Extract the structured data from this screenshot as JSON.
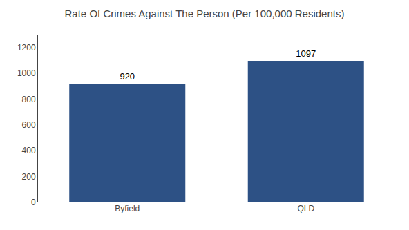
{
  "chart_data": {
    "type": "bar",
    "title": "Rate Of Crimes Against The Person (Per 100,000 Residents)",
    "categories": [
      "Byfield",
      "QLD"
    ],
    "values": [
      920,
      1097
    ],
    "color": "#2d5185",
    "ylim": [
      0,
      1300
    ],
    "yticks": [
      0,
      200,
      400,
      600,
      800,
      1000,
      1200
    ],
    "grid": false,
    "data_labels": true
  }
}
